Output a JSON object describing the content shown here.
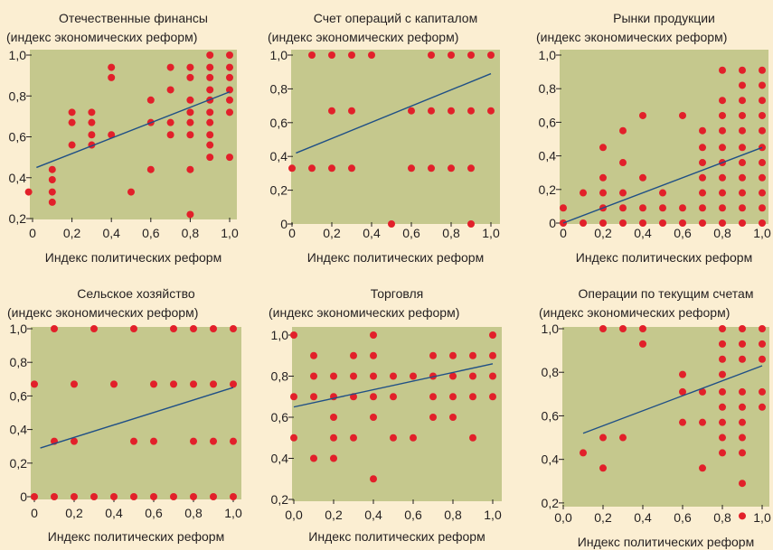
{
  "colors": {
    "background": "#fbeed2",
    "plot_area": "#c5c88d",
    "point": "#e2202a",
    "trend_line": "#1f4f86",
    "text": "#231f20"
  },
  "chart_data": [
    {
      "type": "scatter",
      "title": "Отечественные финансы",
      "ylabel": "(индекс экономических реформ)",
      "xlabel": "Индекс политических реформ",
      "xlim": [
        0,
        1
      ],
      "ylim": [
        0.2,
        1.0
      ],
      "x_ticks": [
        0,
        0.2,
        0.4,
        0.6,
        0.8,
        1.0
      ],
      "x_tick_labels": [
        "0",
        "0,2",
        "0,4",
        "0,6",
        "0,8",
        "1,0"
      ],
      "y_ticks": [
        0.2,
        0.4,
        0.6,
        0.8,
        1.0
      ],
      "y_tick_labels": [
        "0,2",
        "0,4",
        "0,6",
        "0,8",
        "1,0"
      ],
      "trend_line": [
        [
          0.02,
          0.45
        ],
        [
          1.0,
          0.82
        ]
      ],
      "points": [
        [
          -0.02,
          0.33
        ],
        [
          0.1,
          0.44
        ],
        [
          0.1,
          0.39
        ],
        [
          0.1,
          0.33
        ],
        [
          0.1,
          0.28
        ],
        [
          0.2,
          0.72
        ],
        [
          0.2,
          0.67
        ],
        [
          0.2,
          0.56
        ],
        [
          0.3,
          0.72
        ],
        [
          0.3,
          0.67
        ],
        [
          0.3,
          0.61
        ],
        [
          0.3,
          0.56
        ],
        [
          0.4,
          0.94
        ],
        [
          0.4,
          0.89
        ],
        [
          0.4,
          0.61
        ],
        [
          0.5,
          0.33
        ],
        [
          0.6,
          0.78
        ],
        [
          0.6,
          0.67
        ],
        [
          0.6,
          0.44
        ],
        [
          0.7,
          0.94
        ],
        [
          0.7,
          0.83
        ],
        [
          0.7,
          0.67
        ],
        [
          0.7,
          0.61
        ],
        [
          0.8,
          0.94
        ],
        [
          0.8,
          0.89
        ],
        [
          0.8,
          0.78
        ],
        [
          0.8,
          0.72
        ],
        [
          0.8,
          0.67
        ],
        [
          0.8,
          0.61
        ],
        [
          0.8,
          0.44
        ],
        [
          0.8,
          0.22
        ],
        [
          0.9,
          1.0
        ],
        [
          0.9,
          0.94
        ],
        [
          0.9,
          0.89
        ],
        [
          0.9,
          0.83
        ],
        [
          0.9,
          0.78
        ],
        [
          0.9,
          0.72
        ],
        [
          0.9,
          0.67
        ],
        [
          0.9,
          0.61
        ],
        [
          0.9,
          0.56
        ],
        [
          0.9,
          0.5
        ],
        [
          1.0,
          1.0
        ],
        [
          1.0,
          0.94
        ],
        [
          1.0,
          0.89
        ],
        [
          1.0,
          0.83
        ],
        [
          1.0,
          0.78
        ],
        [
          1.0,
          0.72
        ],
        [
          1.0,
          0.5
        ]
      ]
    },
    {
      "type": "scatter",
      "title": "Счет операций с капиталом",
      "ylabel": "(индекс экономических реформ)",
      "xlabel": "Индекс политических реформ",
      "xlim": [
        0,
        1
      ],
      "ylim": [
        0,
        1.0
      ],
      "x_ticks": [
        0,
        0.2,
        0.4,
        0.6,
        0.8,
        1.0
      ],
      "x_tick_labels": [
        "0",
        "0,2",
        "0,4",
        "0,6",
        "0,8",
        "1,0"
      ],
      "y_ticks": [
        0,
        0.2,
        0.4,
        0.6,
        0.8,
        1.0
      ],
      "y_tick_labels": [
        "0",
        "0,2",
        "0,4",
        "0,6",
        "0,8",
        "1,0"
      ],
      "trend_line": [
        [
          0.02,
          0.42
        ],
        [
          1.0,
          0.89
        ]
      ],
      "points": [
        [
          0.1,
          1.0
        ],
        [
          0.2,
          1.0
        ],
        [
          0.3,
          1.0
        ],
        [
          0.4,
          1.0
        ],
        [
          0.7,
          1.0
        ],
        [
          0.8,
          1.0
        ],
        [
          0.9,
          1.0
        ],
        [
          1.0,
          1.0
        ],
        [
          0.2,
          0.67
        ],
        [
          0.3,
          0.67
        ],
        [
          0.6,
          0.67
        ],
        [
          0.7,
          0.67
        ],
        [
          0.8,
          0.67
        ],
        [
          0.9,
          0.67
        ],
        [
          1.0,
          0.67
        ],
        [
          0.0,
          0.33
        ],
        [
          0.1,
          0.33
        ],
        [
          0.2,
          0.33
        ],
        [
          0.3,
          0.33
        ],
        [
          0.6,
          0.33
        ],
        [
          0.7,
          0.33
        ],
        [
          0.8,
          0.33
        ],
        [
          0.9,
          0.33
        ],
        [
          0.5,
          0.0
        ],
        [
          0.9,
          0.0
        ]
      ]
    },
    {
      "type": "scatter",
      "title": "Рынки продукции",
      "ylabel": "(индекс экономических реформ)",
      "xlabel": "Индекс политических реформ",
      "xlim": [
        0,
        1
      ],
      "ylim": [
        0,
        1.0
      ],
      "x_ticks": [
        0,
        0.2,
        0.4,
        0.6,
        0.8,
        1.0
      ],
      "x_tick_labels": [
        "0",
        "0,2",
        "0,4",
        "0,6",
        "0,8",
        "1,0"
      ],
      "y_ticks": [
        0,
        0.2,
        0.4,
        0.6,
        0.8,
        1.0
      ],
      "y_tick_labels": [
        "0",
        "0,2",
        "0,4",
        "0,6",
        "0,8",
        "1,0"
      ],
      "trend_line": [
        [
          0.0,
          0.0
        ],
        [
          1.0,
          0.45
        ]
      ],
      "points": [
        [
          0.0,
          0.09
        ],
        [
          0.0,
          0.0
        ],
        [
          0.1,
          0.18
        ],
        [
          0.1,
          0.0
        ],
        [
          0.2,
          0.45
        ],
        [
          0.2,
          0.27
        ],
        [
          0.2,
          0.18
        ],
        [
          0.2,
          0.09
        ],
        [
          0.2,
          0.0
        ],
        [
          0.3,
          0.55
        ],
        [
          0.3,
          0.36
        ],
        [
          0.3,
          0.18
        ],
        [
          0.3,
          0.09
        ],
        [
          0.3,
          0.0
        ],
        [
          0.4,
          0.64
        ],
        [
          0.4,
          0.27
        ],
        [
          0.4,
          0.09
        ],
        [
          0.4,
          0.0
        ],
        [
          0.5,
          0.18
        ],
        [
          0.5,
          0.09
        ],
        [
          0.5,
          0.0
        ],
        [
          0.6,
          0.64
        ],
        [
          0.6,
          0.09
        ],
        [
          0.6,
          0.0
        ],
        [
          0.7,
          0.55
        ],
        [
          0.7,
          0.45
        ],
        [
          0.7,
          0.36
        ],
        [
          0.7,
          0.27
        ],
        [
          0.7,
          0.18
        ],
        [
          0.7,
          0.09
        ],
        [
          0.7,
          0.0
        ],
        [
          0.8,
          0.91
        ],
        [
          0.8,
          0.73
        ],
        [
          0.8,
          0.64
        ],
        [
          0.8,
          0.55
        ],
        [
          0.8,
          0.45
        ],
        [
          0.8,
          0.36
        ],
        [
          0.8,
          0.27
        ],
        [
          0.8,
          0.18
        ],
        [
          0.8,
          0.09
        ],
        [
          0.8,
          0.0
        ],
        [
          0.9,
          0.91
        ],
        [
          0.9,
          0.82
        ],
        [
          0.9,
          0.73
        ],
        [
          0.9,
          0.64
        ],
        [
          0.9,
          0.55
        ],
        [
          0.9,
          0.45
        ],
        [
          0.9,
          0.36
        ],
        [
          0.9,
          0.27
        ],
        [
          0.9,
          0.18
        ],
        [
          0.9,
          0.09
        ],
        [
          0.9,
          0.0
        ],
        [
          1.0,
          0.91
        ],
        [
          1.0,
          0.82
        ],
        [
          1.0,
          0.73
        ],
        [
          1.0,
          0.64
        ],
        [
          1.0,
          0.55
        ],
        [
          1.0,
          0.45
        ],
        [
          1.0,
          0.36
        ],
        [
          1.0,
          0.27
        ],
        [
          1.0,
          0.18
        ],
        [
          1.0,
          0.09
        ],
        [
          1.0,
          0.0
        ]
      ]
    },
    {
      "type": "scatter",
      "title": "Сельское хозяйство",
      "ylabel": "(индекс экономических реформ)",
      "xlabel": "Индекс политических реформ",
      "xlim": [
        0,
        1
      ],
      "ylim": [
        0,
        1.0
      ],
      "x_ticks": [
        0,
        0.2,
        0.4,
        0.6,
        0.8,
        1.0
      ],
      "x_tick_labels": [
        "0",
        "0,2",
        "0,4",
        "0,6",
        "0,8",
        "1,0"
      ],
      "y_ticks": [
        0,
        0.2,
        0.4,
        0.6,
        0.8,
        1.0
      ],
      "y_tick_labels": [
        "0",
        "0,2",
        "0,4",
        "0,6",
        "0,8",
        "1,0"
      ],
      "trend_line": [
        [
          0.03,
          0.29
        ],
        [
          1.0,
          0.65
        ]
      ],
      "points": [
        [
          0.1,
          1.0
        ],
        [
          0.3,
          1.0
        ],
        [
          0.5,
          1.0
        ],
        [
          0.7,
          1.0
        ],
        [
          0.8,
          1.0
        ],
        [
          0.9,
          1.0
        ],
        [
          1.0,
          1.0
        ],
        [
          0.0,
          0.67
        ],
        [
          0.2,
          0.67
        ],
        [
          0.4,
          0.67
        ],
        [
          0.6,
          0.67
        ],
        [
          0.7,
          0.67
        ],
        [
          0.8,
          0.67
        ],
        [
          0.9,
          0.67
        ],
        [
          1.0,
          0.67
        ],
        [
          0.1,
          0.33
        ],
        [
          0.2,
          0.33
        ],
        [
          0.5,
          0.33
        ],
        [
          0.6,
          0.33
        ],
        [
          0.8,
          0.33
        ],
        [
          0.9,
          0.33
        ],
        [
          1.0,
          0.33
        ],
        [
          0.0,
          0.0
        ],
        [
          0.1,
          0.0
        ],
        [
          0.2,
          0.0
        ],
        [
          0.3,
          0.0
        ],
        [
          0.4,
          0.0
        ],
        [
          0.5,
          0.0
        ],
        [
          0.6,
          0.0
        ],
        [
          0.7,
          0.0
        ],
        [
          0.8,
          0.0
        ],
        [
          0.9,
          0.0
        ],
        [
          1.0,
          0.0
        ]
      ]
    },
    {
      "type": "scatter",
      "title": "Торговля",
      "ylabel": "(индекс экономических реформ)",
      "xlabel": "Индекс политических реформ",
      "xlim": [
        0,
        1
      ],
      "ylim": [
        0.2,
        1.0
      ],
      "x_ticks": [
        0,
        0.2,
        0.4,
        0.6,
        0.8,
        1.0
      ],
      "x_tick_labels": [
        "0,0",
        "0,2",
        "0,4",
        "0,6",
        "0,8",
        "1,0"
      ],
      "y_ticks": [
        0.2,
        0.4,
        0.6,
        0.8,
        1.0
      ],
      "y_tick_labels": [
        "0,2",
        "0,4",
        "0,6",
        "0,8",
        "1,0"
      ],
      "trend_line": [
        [
          0.0,
          0.65
        ],
        [
          1.0,
          0.86
        ]
      ],
      "points": [
        [
          0.0,
          1.0
        ],
        [
          0.0,
          0.7
        ],
        [
          0.0,
          0.5
        ],
        [
          0.1,
          0.9
        ],
        [
          0.1,
          0.8
        ],
        [
          0.1,
          0.7
        ],
        [
          0.1,
          0.4
        ],
        [
          0.2,
          0.8
        ],
        [
          0.2,
          0.7
        ],
        [
          0.2,
          0.6
        ],
        [
          0.2,
          0.5
        ],
        [
          0.2,
          0.4
        ],
        [
          0.3,
          0.9
        ],
        [
          0.3,
          0.8
        ],
        [
          0.3,
          0.7
        ],
        [
          0.3,
          0.5
        ],
        [
          0.4,
          1.0
        ],
        [
          0.4,
          0.9
        ],
        [
          0.4,
          0.8
        ],
        [
          0.4,
          0.7
        ],
        [
          0.4,
          0.6
        ],
        [
          0.4,
          0.3
        ],
        [
          0.5,
          0.8
        ],
        [
          0.5,
          0.7
        ],
        [
          0.5,
          0.5
        ],
        [
          0.6,
          0.8
        ],
        [
          0.6,
          0.5
        ],
        [
          0.7,
          0.9
        ],
        [
          0.7,
          0.8
        ],
        [
          0.7,
          0.7
        ],
        [
          0.7,
          0.6
        ],
        [
          0.8,
          0.9
        ],
        [
          0.8,
          0.8
        ],
        [
          0.8,
          0.7
        ],
        [
          0.8,
          0.6
        ],
        [
          0.9,
          0.9
        ],
        [
          0.9,
          0.8
        ],
        [
          0.9,
          0.7
        ],
        [
          0.9,
          0.5
        ],
        [
          1.0,
          1.0
        ],
        [
          1.0,
          0.9
        ],
        [
          1.0,
          0.8
        ],
        [
          1.0,
          0.7
        ]
      ]
    },
    {
      "type": "scatter",
      "title": "Операции по текущим счетам",
      "ylabel": "(индекс экономических реформ)",
      "xlabel": "Индекс политических реформ",
      "xlim": [
        0,
        1
      ],
      "ylim": [
        0.1,
        1.0
      ],
      "x_ticks": [
        0,
        0.2,
        0.4,
        0.6,
        0.8,
        1.0
      ],
      "x_tick_labels": [
        "0,0",
        "0,2",
        "0,4",
        "0,6",
        "0,8",
        "1,0"
      ],
      "y_ticks": [
        0.2,
        0.4,
        0.6,
        0.8,
        1.0
      ],
      "y_tick_labels": [
        "0,2",
        "0,4",
        "0,6",
        "0,8",
        "1,0"
      ],
      "trend_line": [
        [
          0.1,
          0.52
        ],
        [
          1.0,
          0.83
        ]
      ],
      "points": [
        [
          0.2,
          1.0
        ],
        [
          0.3,
          1.0
        ],
        [
          0.4,
          1.0
        ],
        [
          0.4,
          0.93
        ],
        [
          0.1,
          0.43
        ],
        [
          0.2,
          0.5
        ],
        [
          0.2,
          0.36
        ],
        [
          0.3,
          0.5
        ],
        [
          0.6,
          0.79
        ],
        [
          0.6,
          0.71
        ],
        [
          0.6,
          0.57
        ],
        [
          0.7,
          0.71
        ],
        [
          0.7,
          0.57
        ],
        [
          0.7,
          0.36
        ],
        [
          0.8,
          1.0
        ],
        [
          0.8,
          0.93
        ],
        [
          0.8,
          0.86
        ],
        [
          0.8,
          0.79
        ],
        [
          0.8,
          0.71
        ],
        [
          0.8,
          0.64
        ],
        [
          0.8,
          0.57
        ],
        [
          0.8,
          0.5
        ],
        [
          0.8,
          0.43
        ],
        [
          0.9,
          1.0
        ],
        [
          0.9,
          0.93
        ],
        [
          0.9,
          0.86
        ],
        [
          0.9,
          0.71
        ],
        [
          0.9,
          0.64
        ],
        [
          0.9,
          0.57
        ],
        [
          0.9,
          0.5
        ],
        [
          0.9,
          0.43
        ],
        [
          0.9,
          0.29
        ],
        [
          0.9,
          0.14
        ],
        [
          1.0,
          1.0
        ],
        [
          1.0,
          0.93
        ],
        [
          1.0,
          0.86
        ],
        [
          1.0,
          0.71
        ],
        [
          1.0,
          0.64
        ]
      ]
    }
  ]
}
